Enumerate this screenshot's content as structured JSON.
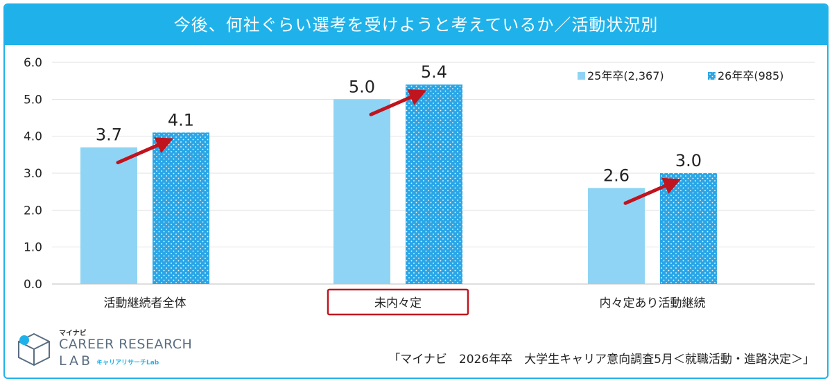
{
  "title": "今後、何社ぐらい選考を受けようと考えているか／活動状況別",
  "source": "「マイナビ　2026年卒　大学生キャリア意向調査5月＜就職活動・進路決定＞」",
  "logo": {
    "jp": "マイナビ",
    "line1": "CAREER RESEARCH",
    "line2": "LAB",
    "sub": "キャリアリサーチLab"
  },
  "colors": {
    "frame": "#1fb2ea",
    "series1": "#8fd4f4",
    "series2": "#2aa6e6",
    "arrow": "#c0141e",
    "highlight": "#c0141e"
  },
  "chart_data": {
    "type": "bar",
    "categories": [
      "活動継続者全体",
      "未内々定",
      "内々定あり活動継続"
    ],
    "series": [
      {
        "name": "25年卒(2,367)",
        "values": [
          3.7,
          5.0,
          2.6
        ],
        "labels": [
          "3.7",
          "5.0",
          "2.6"
        ]
      },
      {
        "name": "26年卒(985)",
        "values": [
          4.1,
          5.4,
          3.0
        ],
        "labels": [
          "4.1",
          "5.4",
          "3.0"
        ]
      }
    ],
    "ylim": [
      0,
      6
    ],
    "yticks": [
      "0.0",
      "1.0",
      "2.0",
      "3.0",
      "4.0",
      "5.0",
      "6.0"
    ],
    "grid": true,
    "legend": "top-right",
    "highlighted_category": "未内々定",
    "annotations": "arrows from 25年卒 bar to 26年卒 bar in each category"
  }
}
